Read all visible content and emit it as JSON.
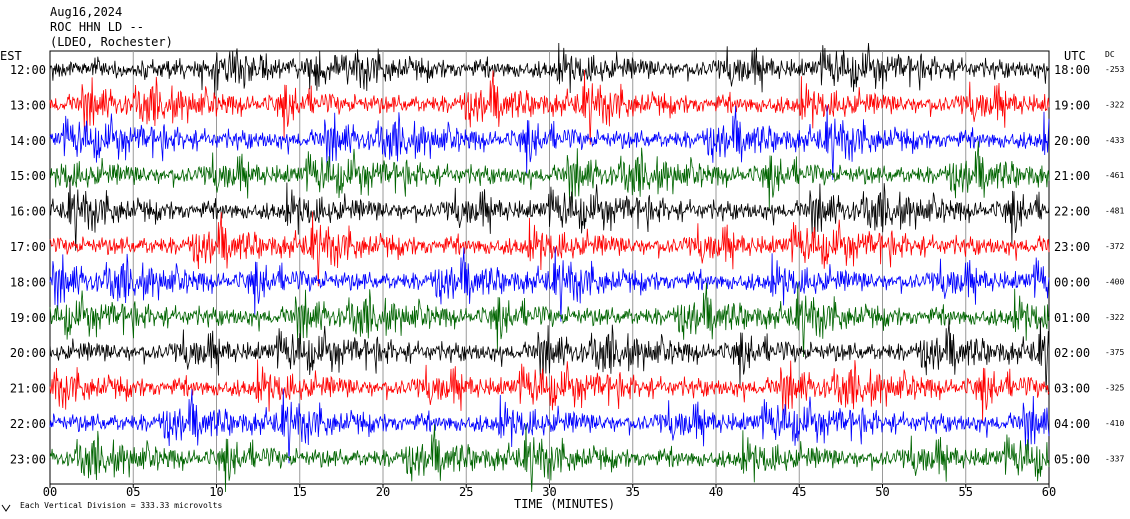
{
  "chart_data": {
    "type": "line",
    "title_lines": [
      "Aug16,2024",
      "ROC HHN LD --",
      "(LDEO, Rochester)"
    ],
    "left_axis_label": "EST",
    "right_axis_label": "UTC",
    "dc_label": "DC",
    "xlabel": "TIME (MINUTES)",
    "x_ticks": [
      "00",
      "05",
      "10",
      "15",
      "20",
      "25",
      "30",
      "35",
      "40",
      "45",
      "50",
      "55",
      "60"
    ],
    "xlim": [
      0,
      60
    ],
    "grid": true,
    "footer": "Each Vertical Division =  333.33 microvolts",
    "footer_logo": "LDEO mark",
    "trace_colors": [
      "#000000",
      "#ff0000",
      "#0000ff",
      "#006400"
    ],
    "rows": [
      {
        "est": "12:00",
        "utc": "18:00",
        "dc": "-253"
      },
      {
        "est": "13:00",
        "utc": "19:00",
        "dc": "-322"
      },
      {
        "est": "14:00",
        "utc": "20:00",
        "dc": "-433"
      },
      {
        "est": "15:00",
        "utc": "21:00",
        "dc": "-461"
      },
      {
        "est": "16:00",
        "utc": "22:00",
        "dc": "-481"
      },
      {
        "est": "17:00",
        "utc": "23:00",
        "dc": "-372"
      },
      {
        "est": "18:00",
        "utc": "00:00",
        "dc": "-400"
      },
      {
        "est": "19:00",
        "utc": "01:00",
        "dc": "-322"
      },
      {
        "est": "20:00",
        "utc": "02:00",
        "dc": "-375"
      },
      {
        "est": "21:00",
        "utc": "03:00",
        "dc": "-325"
      },
      {
        "est": "22:00",
        "utc": "04:00",
        "dc": "-410"
      },
      {
        "est": "23:00",
        "utc": "05:00",
        "dc": "-337"
      }
    ]
  }
}
